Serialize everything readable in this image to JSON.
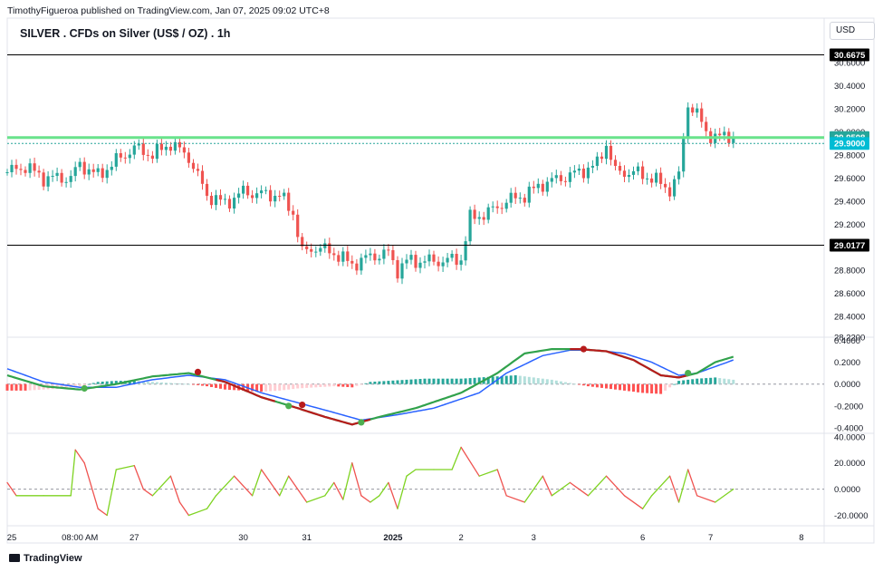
{
  "attribution": "TimothyFigueroa published on TradingView.com, Jan 07, 2025 09:02 UTC+8",
  "title": "SILVER . CFDs on Silver (US$ / OZ) . 1h",
  "currency": "USD",
  "footer": "TradingView",
  "chart_data": [
    {
      "type": "candlestick",
      "pane": "price",
      "ylim": [
        28.22,
        30.75
      ],
      "y_ticks": [
        "30.6000",
        "30.4000",
        "30.2000",
        "30.0000",
        "29.8000",
        "29.6000",
        "29.4000",
        "29.2000",
        "29.0000",
        "28.8000",
        "28.6000",
        "28.4000",
        "28.2200"
      ],
      "x_ticks": [
        {
          "label": "25",
          "i": 1
        },
        {
          "label": "08:00 AM",
          "i": 16
        },
        {
          "label": "27",
          "i": 28
        },
        {
          "label": "30",
          "i": 52
        },
        {
          "label": "31",
          "i": 66
        },
        {
          "label": "2025",
          "i": 85
        },
        {
          "label": "2",
          "i": 100
        },
        {
          "label": "3",
          "i": 116
        },
        {
          "label": "6",
          "i": 140
        },
        {
          "label": "7",
          "i": 155
        },
        {
          "label": "8",
          "i": 175
        }
      ],
      "path": [
        [
          0,
          29.65
        ],
        [
          4,
          29.7
        ],
        [
          8,
          29.6
        ],
        [
          14,
          29.6
        ],
        [
          16,
          29.72
        ],
        [
          20,
          29.62
        ],
        [
          24,
          29.75
        ],
        [
          28,
          29.86
        ],
        [
          32,
          29.8
        ],
        [
          36,
          29.9
        ],
        [
          40,
          29.78
        ],
        [
          44,
          29.45
        ],
        [
          48,
          29.38
        ],
        [
          52,
          29.48
        ],
        [
          56,
          29.46
        ],
        [
          60,
          29.45
        ],
        [
          63,
          29.3
        ],
        [
          65,
          28.95
        ],
        [
          68,
          29.0
        ],
        [
          72,
          28.95
        ],
        [
          76,
          28.85
        ],
        [
          80,
          28.92
        ],
        [
          84,
          28.95
        ],
        [
          86,
          28.8
        ],
        [
          88,
          28.88
        ],
        [
          90,
          28.88
        ],
        [
          96,
          28.88
        ],
        [
          100,
          28.9
        ],
        [
          102,
          29.25
        ],
        [
          106,
          29.3
        ],
        [
          110,
          29.4
        ],
        [
          114,
          29.45
        ],
        [
          118,
          29.55
        ],
        [
          122,
          29.6
        ],
        [
          126,
          29.65
        ],
        [
          130,
          29.72
        ],
        [
          132,
          29.9
        ],
        [
          134,
          29.65
        ],
        [
          138,
          29.65
        ],
        [
          142,
          29.6
        ],
        [
          146,
          29.5
        ],
        [
          148,
          29.62
        ],
        [
          150,
          30.25
        ],
        [
          152,
          30.15
        ],
        [
          154,
          30.0
        ],
        [
          156,
          29.95
        ],
        [
          160,
          29.97
        ]
      ],
      "annotations": [
        {
          "label": "30.6675",
          "value": 30.6675,
          "style": "black-line"
        },
        {
          "label": "29.9508",
          "value": 29.9508,
          "style": "green-band"
        },
        {
          "label": "29.9000",
          "value": 29.9,
          "style": "teal-label"
        },
        {
          "label": "29.0177",
          "value": 29.0177,
          "style": "black-line"
        }
      ],
      "colors": {
        "up": "#26a69a",
        "down": "#ef5350"
      }
    },
    {
      "type": "line",
      "pane": "macd",
      "ylim": [
        -0.45,
        0.42
      ],
      "y_ticks": [
        "0.4000",
        "0.2000",
        "0.0000",
        "-0.2000",
        "-0.4000"
      ],
      "series": [
        {
          "key": "fast",
          "color": "#31a24c",
          "path": [
            [
              0,
              0.08
            ],
            [
              8,
              -0.02
            ],
            [
              16,
              -0.05
            ],
            [
              24,
              0.0
            ],
            [
              32,
              0.07
            ],
            [
              40,
              0.1
            ],
            [
              48,
              0.02
            ],
            [
              56,
              -0.12
            ],
            [
              64,
              -0.22
            ],
            [
              70,
              -0.3
            ],
            [
              76,
              -0.37
            ],
            [
              82,
              -0.3
            ],
            [
              90,
              -0.22
            ],
            [
              100,
              -0.08
            ],
            [
              108,
              0.1
            ],
            [
              114,
              0.28
            ],
            [
              120,
              0.32
            ],
            [
              126,
              0.32
            ],
            [
              132,
              0.3
            ],
            [
              138,
              0.22
            ],
            [
              144,
              0.08
            ],
            [
              148,
              0.06
            ],
            [
              152,
              0.1
            ],
            [
              156,
              0.2
            ],
            [
              160,
              0.25
            ]
          ]
        },
        {
          "key": "slow",
          "color": "#2962ff",
          "path": [
            [
              0,
              0.14
            ],
            [
              8,
              0.02
            ],
            [
              16,
              -0.03
            ],
            [
              24,
              -0.03
            ],
            [
              32,
              0.04
            ],
            [
              40,
              0.08
            ],
            [
              48,
              0.04
            ],
            [
              56,
              -0.08
            ],
            [
              64,
              -0.17
            ],
            [
              72,
              -0.26
            ],
            [
              78,
              -0.33
            ],
            [
              86,
              -0.28
            ],
            [
              94,
              -0.22
            ],
            [
              104,
              -0.08
            ],
            [
              110,
              0.1
            ],
            [
              118,
              0.26
            ],
            [
              124,
              0.31
            ],
            [
              130,
              0.31
            ],
            [
              136,
              0.28
            ],
            [
              142,
              0.2
            ],
            [
              148,
              0.08
            ],
            [
              152,
              0.1
            ],
            [
              156,
              0.16
            ],
            [
              160,
              0.22
            ]
          ]
        }
      ],
      "red_segments": [
        [
          46,
          59
        ],
        [
          62,
          80
        ],
        [
          124,
          150
        ]
      ],
      "crossovers": [
        {
          "i": 17,
          "v": -0.04,
          "type": "bull"
        },
        {
          "i": 42,
          "v": 0.11,
          "type": "bear"
        },
        {
          "i": 62,
          "v": -0.2,
          "type": "bull"
        },
        {
          "i": 65,
          "v": -0.19,
          "type": "bear"
        },
        {
          "i": 78,
          "v": -0.35,
          "type": "bull"
        },
        {
          "i": 127,
          "v": 0.32,
          "type": "bear"
        },
        {
          "i": 150,
          "v": 0.1,
          "type": "bull"
        }
      ],
      "histogram": [
        [
          0,
          -0.06
        ],
        [
          4,
          -0.06
        ],
        [
          8,
          -0.05
        ],
        [
          12,
          -0.04
        ],
        [
          16,
          -0.02
        ],
        [
          20,
          0.02
        ],
        [
          24,
          0.03
        ],
        [
          28,
          0.03
        ],
        [
          32,
          0.02
        ],
        [
          36,
          0.01
        ],
        [
          40,
          0.0
        ],
        [
          44,
          -0.02
        ],
        [
          48,
          -0.05
        ],
        [
          52,
          -0.06
        ],
        [
          56,
          -0.07
        ],
        [
          60,
          -0.06
        ],
        [
          64,
          -0.04
        ],
        [
          68,
          -0.03
        ],
        [
          72,
          -0.02
        ],
        [
          76,
          -0.03
        ],
        [
          80,
          0.02
        ],
        [
          84,
          0.03
        ],
        [
          88,
          0.04
        ],
        [
          92,
          0.05
        ],
        [
          96,
          0.05
        ],
        [
          100,
          0.05
        ],
        [
          104,
          0.06
        ],
        [
          108,
          0.07
        ],
        [
          112,
          0.08
        ],
        [
          116,
          0.06
        ],
        [
          120,
          0.04
        ],
        [
          124,
          0.01
        ],
        [
          128,
          -0.02
        ],
        [
          132,
          -0.04
        ],
        [
          136,
          -0.06
        ],
        [
          140,
          -0.08
        ],
        [
          144,
          -0.09
        ],
        [
          148,
          0.03
        ],
        [
          152,
          0.05
        ],
        [
          156,
          0.06
        ],
        [
          160,
          0.04
        ]
      ]
    },
    {
      "type": "line",
      "pane": "oscillator",
      "ylim": [
        -28,
        42
      ],
      "y_ticks": [
        "40.0000",
        "20.0000",
        "0.0000",
        "-20.0000"
      ],
      "path": [
        [
          0,
          5
        ],
        [
          2,
          -5
        ],
        [
          8,
          -5
        ],
        [
          14,
          -5
        ],
        [
          15,
          30
        ],
        [
          17,
          20
        ],
        [
          20,
          -15
        ],
        [
          22,
          -20
        ],
        [
          24,
          15
        ],
        [
          28,
          18
        ],
        [
          30,
          0
        ],
        [
          32,
          -5
        ],
        [
          36,
          10
        ],
        [
          38,
          -10
        ],
        [
          40,
          -20
        ],
        [
          44,
          -15
        ],
        [
          46,
          -5
        ],
        [
          50,
          10
        ],
        [
          54,
          -5
        ],
        [
          56,
          15
        ],
        [
          60,
          -5
        ],
        [
          62,
          10
        ],
        [
          66,
          -10
        ],
        [
          70,
          -5
        ],
        [
          72,
          5
        ],
        [
          74,
          -8
        ],
        [
          76,
          20
        ],
        [
          78,
          -5
        ],
        [
          80,
          -10
        ],
        [
          82,
          -5
        ],
        [
          84,
          5
        ],
        [
          86,
          -15
        ],
        [
          88,
          10
        ],
        [
          90,
          15
        ],
        [
          94,
          15
        ],
        [
          98,
          15
        ],
        [
          100,
          32
        ],
        [
          104,
          10
        ],
        [
          108,
          15
        ],
        [
          110,
          -5
        ],
        [
          114,
          -10
        ],
        [
          118,
          10
        ],
        [
          120,
          -5
        ],
        [
          124,
          5
        ],
        [
          128,
          -5
        ],
        [
          132,
          10
        ],
        [
          136,
          -5
        ],
        [
          140,
          -15
        ],
        [
          142,
          -5
        ],
        [
          146,
          10
        ],
        [
          148,
          -10
        ],
        [
          150,
          15
        ],
        [
          152,
          -5
        ],
        [
          156,
          -10
        ],
        [
          160,
          0
        ]
      ],
      "colors": {
        "up": "#7ed321",
        "down": "#ef5350"
      }
    }
  ]
}
